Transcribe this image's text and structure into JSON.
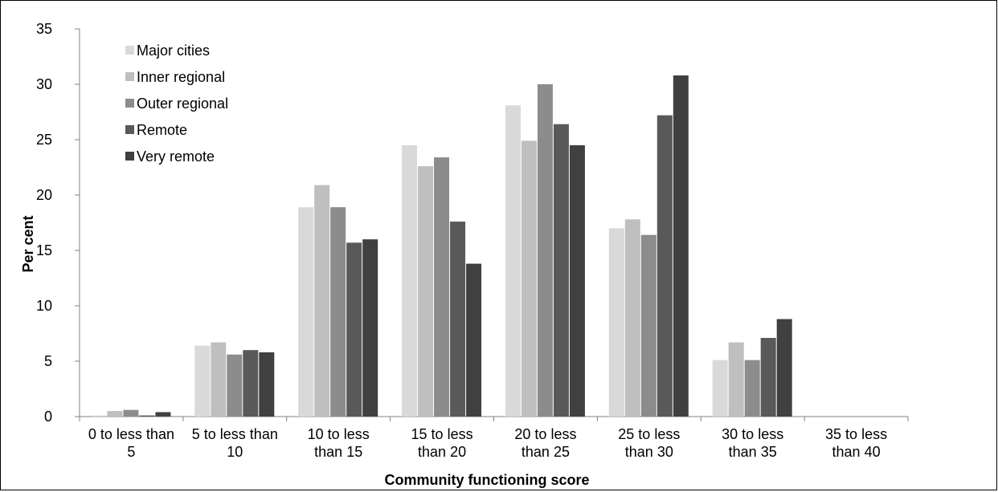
{
  "chart_data": {
    "type": "bar",
    "xlabel": "Community functioning score",
    "ylabel": "Per cent",
    "ylim": [
      0,
      35
    ],
    "yticks": [
      "0",
      "5",
      "10",
      "15",
      "20",
      "25",
      "30",
      "35"
    ],
    "categories": [
      [
        "0 to less than",
        "5"
      ],
      [
        "5 to less than",
        "10"
      ],
      [
        "10 to less",
        "than 15"
      ],
      [
        "15 to less",
        "than 20"
      ],
      [
        "20 to less",
        "than 25"
      ],
      [
        "25 to less",
        "than 30"
      ],
      [
        "30 to less",
        "than 35"
      ],
      [
        "35 to less",
        "than 40"
      ]
    ],
    "series": [
      {
        "name": "Major cities",
        "color": "#d9d9d9",
        "values": [
          0.1,
          6.4,
          18.9,
          24.5,
          28.1,
          17.0,
          5.1,
          0
        ]
      },
      {
        "name": "Inner regional",
        "color": "#bfbfbf",
        "values": [
          0.5,
          6.7,
          20.9,
          22.6,
          24.9,
          17.8,
          6.7,
          0
        ]
      },
      {
        "name": "Outer regional",
        "color": "#8c8c8c",
        "values": [
          0.6,
          5.6,
          18.9,
          23.4,
          30.0,
          16.4,
          5.1,
          0
        ]
      },
      {
        "name": "Remote",
        "color": "#595959",
        "values": [
          0.1,
          6.0,
          15.7,
          17.6,
          26.4,
          27.2,
          7.1,
          0
        ]
      },
      {
        "name": "Very remote",
        "color": "#404040",
        "values": [
          0.4,
          5.8,
          16.0,
          13.8,
          24.5,
          30.8,
          8.8,
          0
        ]
      }
    ],
    "legend_position": "top-left",
    "grid": false
  }
}
